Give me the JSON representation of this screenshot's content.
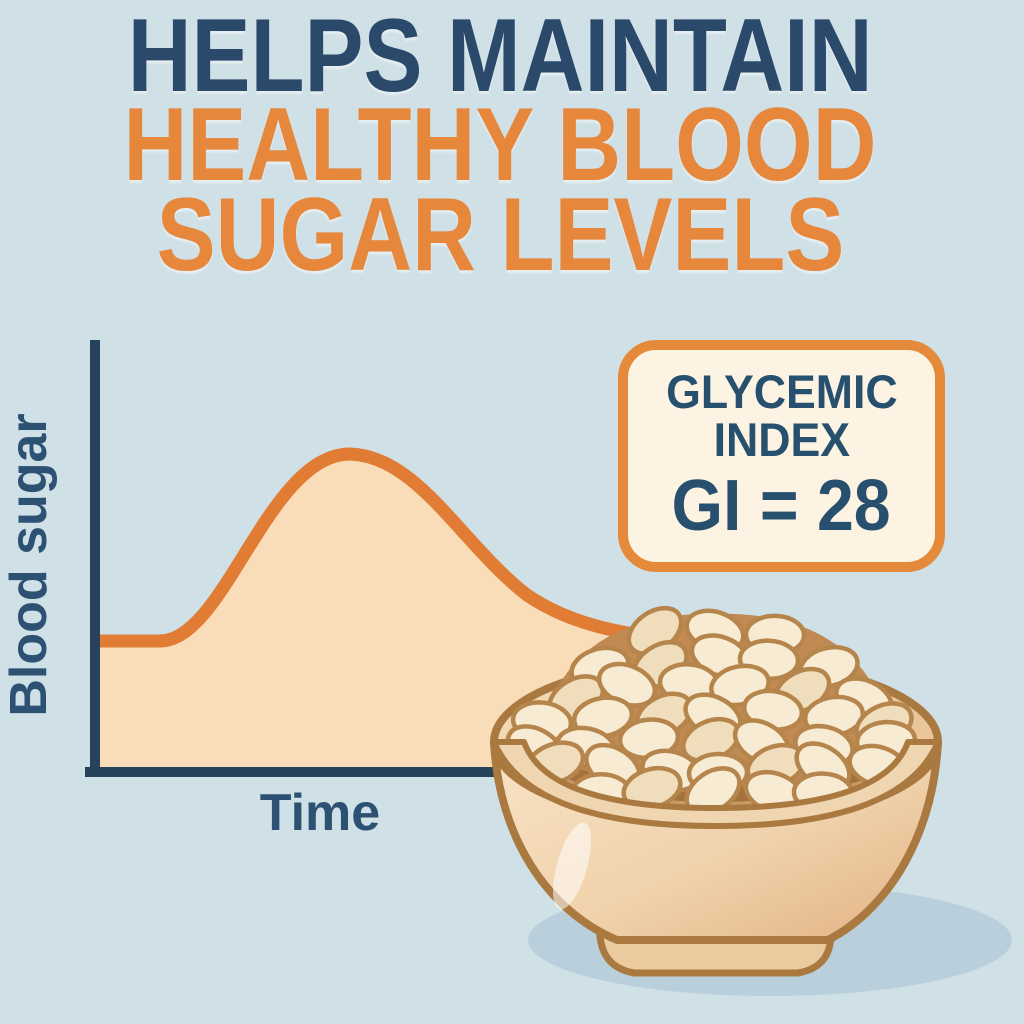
{
  "title": {
    "line1": "HELPS MAINTAIN",
    "line2": "HEALTHY BLOOD",
    "line3": "SUGAR LEVELS"
  },
  "badge": {
    "line1": "GLYCEMIC",
    "line2": "INDEX",
    "value": "GI = 28"
  },
  "chart": {
    "y_axis_label": "Blood sugar",
    "x_axis_label": "Time"
  },
  "illustration": {
    "subject": "bowl-of-beans"
  },
  "colors": {
    "background": "#cfe0e6",
    "title_navy": "#2b4a6b",
    "title_orange": "#e6873c",
    "axis_navy": "#27435c",
    "curve_stroke": "#e07c33",
    "curve_fill": "#f9dcb8",
    "badge_background": "#fdf3e3",
    "badge_border": "#e58a3a",
    "badge_text": "#27506f",
    "bowl_outline": "#a97940",
    "bowl_body_light": "#f8e3c6",
    "bowl_body_dark": "#e3b183",
    "bowl_interior": "#a5713c",
    "bean_fill": "#f7ebd3",
    "bean_outline": "#b5854c",
    "shadow": "#b9cfdc"
  },
  "chart_data": {
    "type": "line",
    "title": "",
    "xlabel": "Time",
    "ylabel": "Blood sugar",
    "x": [
      0,
      1,
      2,
      3,
      4,
      5,
      6,
      7,
      8
    ],
    "series": [
      {
        "name": "blood-sugar-response-low-GI",
        "values": [
          41,
          41,
          42,
          55,
          78,
          100,
          92,
          72,
          57
        ]
      }
    ],
    "ylim": [
      0,
      110
    ],
    "grid": false,
    "legend_position": "none",
    "notes": "Conceptual curve: flat baseline, gentle single peak, gradual decline; no numeric tick labels shown"
  }
}
